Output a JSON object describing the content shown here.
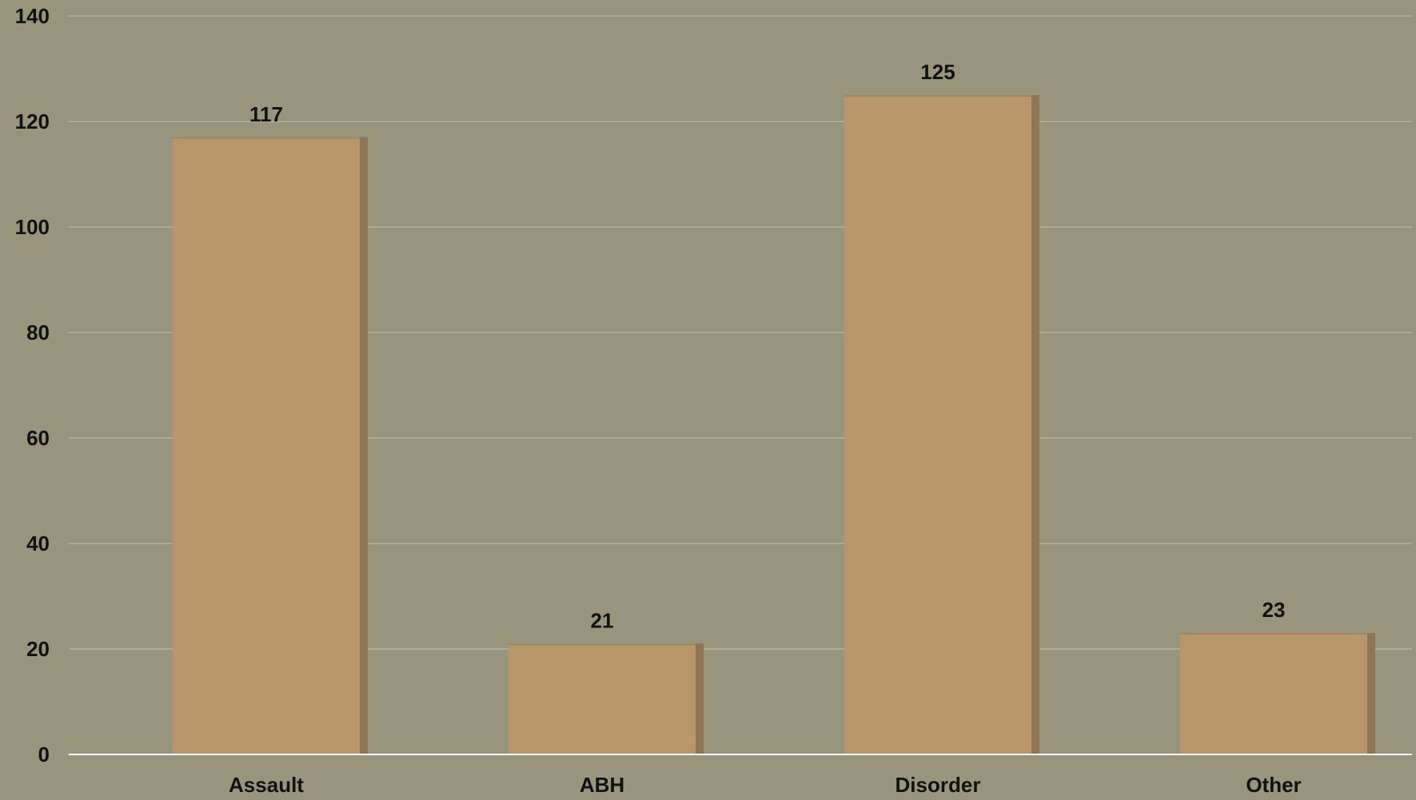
{
  "chart_data": {
    "type": "bar",
    "categories": [
      "Assault",
      "ABH",
      "Disorder",
      "Other"
    ],
    "values": [
      117,
      21,
      125,
      23
    ],
    "data_labels": [
      "117",
      "21",
      "125",
      "23"
    ],
    "y_ticks": [
      0,
      20,
      40,
      60,
      80,
      100,
      120,
      140
    ],
    "y_tick_labels": [
      "0",
      "20",
      "40",
      "60",
      "80",
      "100",
      "120",
      "140"
    ],
    "ylim": [
      0,
      140
    ],
    "title": "",
    "xlabel": "",
    "ylabel": "",
    "grid": true,
    "legend": "none",
    "colors": {
      "background": "#98957c",
      "bar": "#ba976b",
      "bar_shadow": "#8f7553",
      "gridline": "#c9c7b4",
      "axis": "#ffffff",
      "text": "#111111"
    }
  }
}
